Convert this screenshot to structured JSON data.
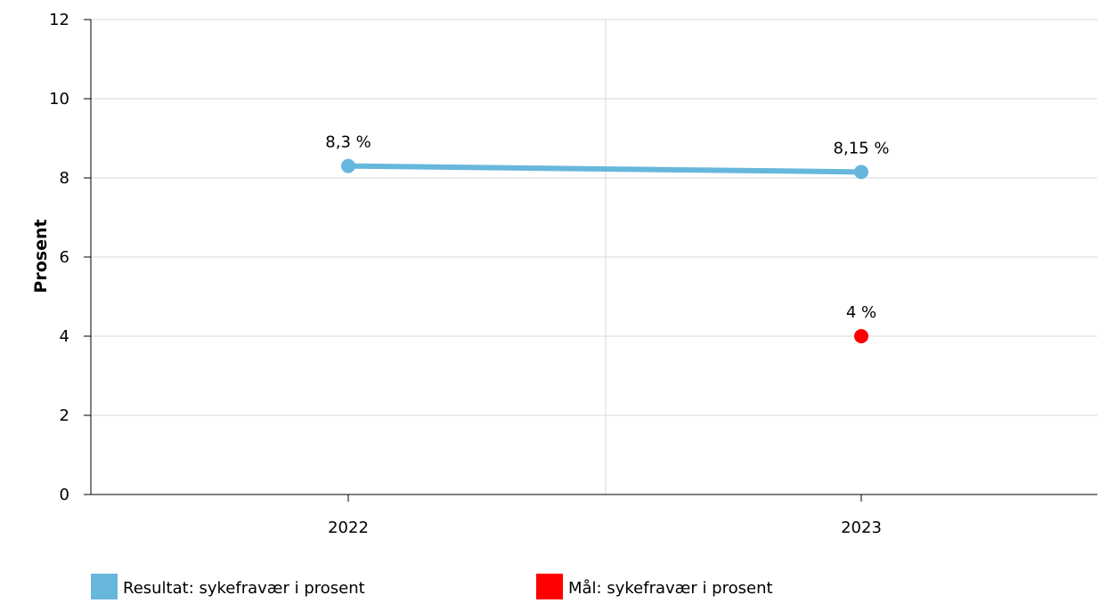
{
  "chart_data": {
    "type": "line",
    "categories": [
      "2022",
      "2023"
    ],
    "series": [
      {
        "name": "Resultat: sykefravær i prosent",
        "values": [
          8.3,
          8.15
        ],
        "labels": [
          "8,3 %",
          "8,15 %"
        ],
        "color": "#67b7dc",
        "style": "line"
      },
      {
        "name": "Mål: sykefravær i prosent",
        "values": [
          null,
          4
        ],
        "labels": [
          null,
          "4 %"
        ],
        "color": "#ff0000",
        "style": "marker"
      }
    ],
    "ylabel": "Prosent",
    "xlabel": "",
    "ylim": [
      0,
      12
    ],
    "yticks": [
      0,
      2,
      4,
      6,
      8,
      10,
      12
    ],
    "grid": true,
    "legend": "bottom-left"
  }
}
